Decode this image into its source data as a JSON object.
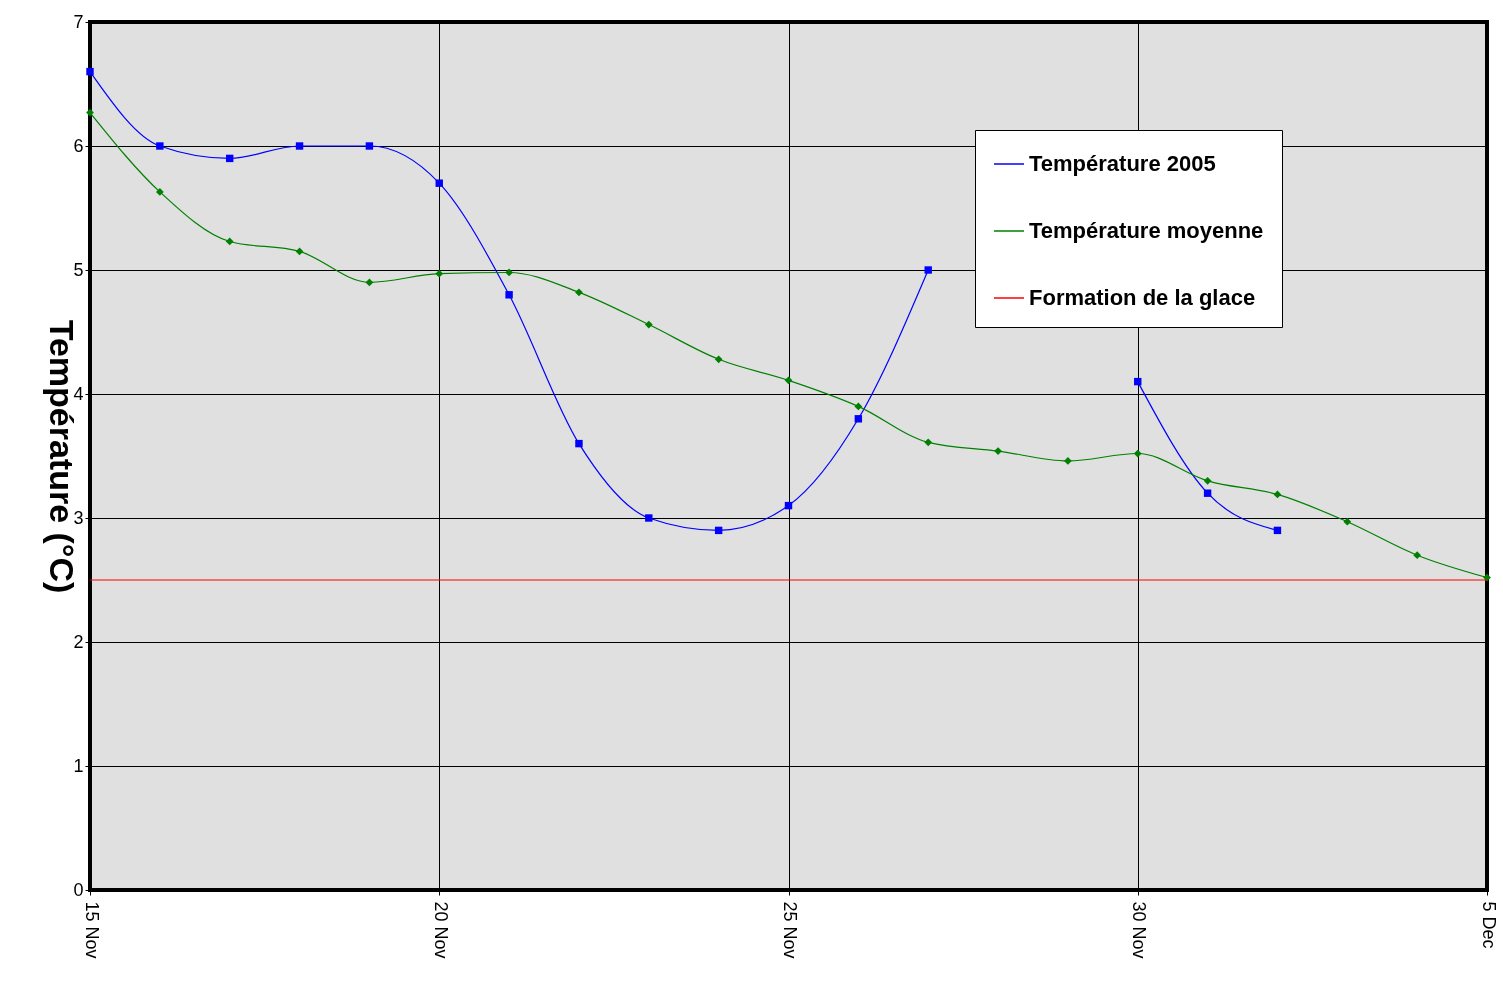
{
  "chart_data": {
    "type": "line",
    "ylabel": "Température (°C)",
    "x": [
      "--11-15",
      "--11-16",
      "--11-17",
      "--11-18",
      "--11-19",
      "--11-20",
      "--11-21",
      "--11-22",
      "--11-23",
      "--11-24",
      "--11-25",
      "--11-26",
      "--11-27",
      "--11-28",
      "--11-29",
      "--11-30",
      "--12-01",
      "--12-02",
      "--12-03",
      "--12-04",
      "--12-05"
    ],
    "series": [
      {
        "name": "Température 2005",
        "color": "#0000ff",
        "marker": "square",
        "values": [
          6.6,
          6.0,
          5.9,
          6.0,
          6.0,
          5.7,
          4.8,
          3.6,
          3.0,
          2.9,
          3.1,
          3.8,
          5.0,
          null,
          null,
          4.1,
          3.2,
          2.9,
          null,
          null,
          null
        ]
      },
      {
        "name": "Température moyenne",
        "color": "#008000",
        "marker": "diamond",
        "values": [
          6.27,
          5.63,
          5.23,
          5.15,
          4.9,
          4.97,
          4.98,
          4.82,
          4.56,
          4.28,
          4.11,
          3.9,
          3.61,
          3.54,
          3.46,
          3.52,
          3.3,
          3.19,
          2.97,
          2.7,
          2.52
        ]
      }
    ],
    "ref_lines": [
      {
        "axis": "y",
        "value": 2.5,
        "label": "Formation de la glace",
        "color": "#ff0000"
      }
    ],
    "xlim": [
      "--11-15",
      "--12-05"
    ],
    "xticks": [
      {
        "value": "--11-15",
        "label": "15 Nov"
      },
      {
        "value": "--11-20",
        "label": "20 Nov"
      },
      {
        "value": "--11-25",
        "label": "25 Nov"
      },
      {
        "value": "--11-30",
        "label": "30 Nov"
      },
      {
        "value": "--12-05",
        "label": "5 Dec"
      }
    ],
    "ylim": [
      0,
      7
    ],
    "yticks": [
      0,
      1,
      2,
      3,
      4,
      5,
      6,
      7
    ],
    "grid": true,
    "legend": "top right",
    "line_style": "solid"
  }
}
